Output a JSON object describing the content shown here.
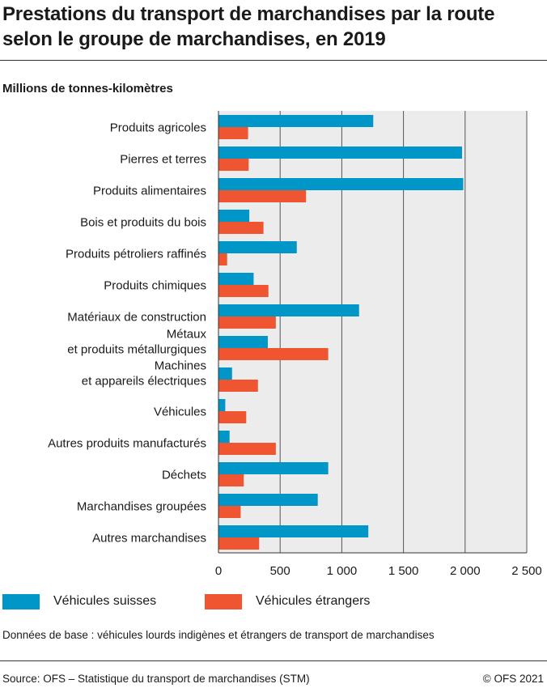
{
  "title": "Prestations du transport de marchandises par la route selon le groupe de marchandises, en 2019",
  "unit_label": "Millions de tonnes-kilomètres",
  "note": "Données de base : véhicules lourds indigènes et étrangers de transport de marchandises",
  "source": "Source: OFS – Statistique du transport de marchandises (STM)",
  "copyright": "© OFS 2021",
  "colors": {
    "suisses": "#0096c8",
    "etrangers": "#ef5530",
    "grid": "#555555",
    "plot_bg": "#ececec"
  },
  "chart_data": {
    "type": "bar",
    "orientation": "horizontal",
    "categories": [
      [
        "Produits agricoles"
      ],
      [
        "Pierres et terres"
      ],
      [
        "Produits alimentaires"
      ],
      [
        "Bois et produits du bois"
      ],
      [
        "Produits pétroliers raffinés"
      ],
      [
        "Produits chimiques"
      ],
      [
        "Matériaux de construction"
      ],
      [
        "Métaux",
        "et produits métallurgiques"
      ],
      [
        "Machines",
        "et appareils électriques"
      ],
      [
        "Véhicules"
      ],
      [
        "Autres produits manufacturés"
      ],
      [
        "Déchets"
      ],
      [
        "Marchandises groupées"
      ],
      [
        "Autres marchandises"
      ]
    ],
    "series": [
      {
        "name": "Véhicules suisses",
        "values": [
          1255,
          1975,
          1985,
          250,
          635,
          285,
          1140,
          400,
          110,
          55,
          90,
          890,
          805,
          1215
        ]
      },
      {
        "name": "Véhicules étrangers",
        "values": [
          240,
          245,
          710,
          365,
          70,
          405,
          465,
          890,
          320,
          225,
          465,
          205,
          180,
          330
        ]
      }
    ],
    "xlim": [
      0,
      2500
    ],
    "xticks": [
      0,
      500,
      1000,
      1500,
      2000,
      2500
    ],
    "xtick_labels": [
      "0",
      "500",
      "1 000",
      "1 500",
      "2 000",
      "2 500"
    ],
    "grid": true,
    "legend_position": "bottom"
  }
}
